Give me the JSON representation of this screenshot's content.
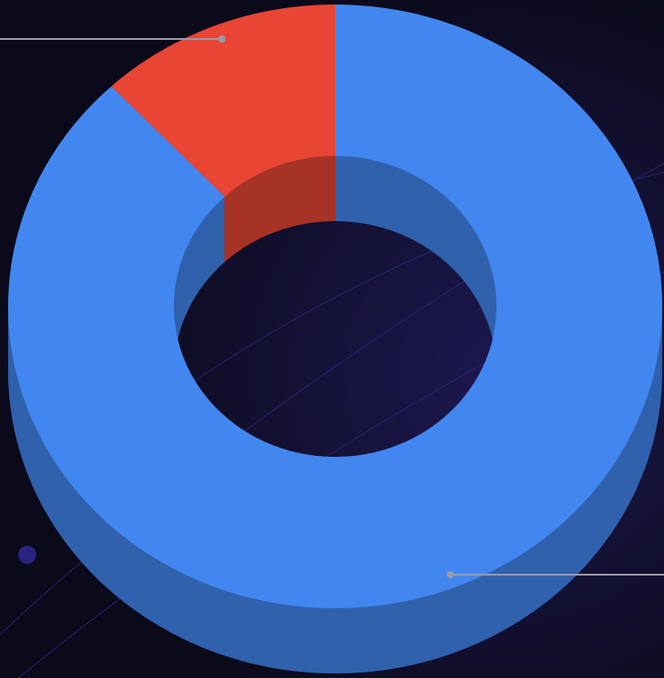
{
  "chart_data": {
    "type": "pie",
    "values": [
      88,
      12
    ],
    "colors": [
      "#4287f0",
      "#e84535"
    ],
    "donut": true,
    "three_d": true
  }
}
